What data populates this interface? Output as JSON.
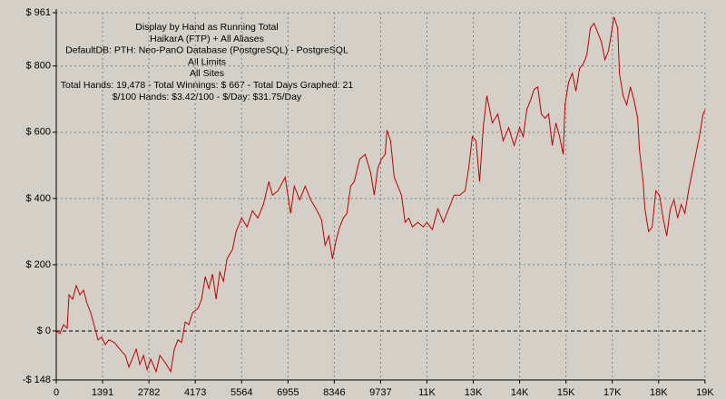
{
  "chart_data": {
    "type": "line",
    "title": "Display by Hand as Running Total",
    "annotations": [
      "HaikarA (FTP) + All Aliases",
      "DefaultDB: PTH: Neo-PanO Database (PostgreSQL) - PostgreSQL",
      "All Limits",
      "All Sites",
      "Total Hands: 19,478 - Total Winnings: $ 667 - Total Days Graphed: 21",
      "$/100 Hands: $3.42/100 - $/Day: $31.75/Day"
    ],
    "x": [
      0,
      109,
      218,
      327,
      382,
      491,
      600,
      709,
      818,
      927,
      1036,
      1145,
      1254,
      1363,
      1472,
      1581,
      1745,
      1909,
      2072,
      2181,
      2290,
      2400,
      2509,
      2618,
      2727,
      2836,
      3000,
      3109,
      3272,
      3436,
      3545,
      3654,
      3763,
      3872,
      3981,
      4090,
      4254,
      4363,
      4472,
      4581,
      4690,
      4799,
      4909,
      5018,
      5127,
      5290,
      5399,
      5563,
      5727,
      5890,
      6054,
      6218,
      6381,
      6490,
      6654,
      6872,
      7036,
      7145,
      7308,
      7472,
      7636,
      7799,
      7963,
      8072,
      8181,
      8290,
      8399,
      8508,
      8617,
      8726,
      8836,
      8945,
      9108,
      9272,
      9436,
      9545,
      9654,
      9763,
      9872,
      9927,
      10036,
      10145,
      10254,
      10363,
      10472,
      10581,
      10690,
      10854,
      11017,
      11126,
      11290,
      11454,
      11617,
      11781,
      11944,
      12108,
      12272,
      12381,
      12490,
      12599,
      12708,
      12817,
      12926,
      13090,
      13253,
      13417,
      13580,
      13744,
      13908,
      14017,
      14126,
      14235,
      14344,
      14453,
      14562,
      14671,
      14780,
      14889,
      14999,
      15108,
      15217,
      15271,
      15380,
      15490,
      15599,
      15708,
      15817,
      15926,
      16035,
      16144,
      16253,
      16362,
      16471,
      16580,
      16689,
      16744,
      16853,
      16907,
      17016,
      17125,
      17234,
      17344,
      17453,
      17507,
      17616,
      17671,
      17780,
      17889,
      17998,
      18107,
      18216,
      18325,
      18434,
      18543,
      18652,
      18761,
      18870,
      18979,
      19088,
      19197,
      19306,
      19415,
      19478
    ],
    "series": [
      {
        "color": "#c00000",
        "values": [
          0,
          -8,
          19,
          8,
          109,
          96,
          137,
          109,
          123,
          82,
          55,
          14,
          -27,
          -19,
          -41,
          -27,
          -35,
          -55,
          -74,
          -109,
          -82,
          -55,
          -101,
          -74,
          -117,
          -85,
          -123,
          -74,
          -96,
          -123,
          -55,
          -27,
          -35,
          27,
          19,
          55,
          68,
          96,
          164,
          128,
          172,
          96,
          178,
          150,
          218,
          246,
          300,
          341,
          314,
          363,
          341,
          382,
          451,
          410,
          423,
          464,
          355,
          437,
          396,
          437,
          396,
          369,
          336,
          259,
          287,
          218,
          273,
          314,
          341,
          355,
          437,
          451,
          519,
          533,
          478,
          410,
          492,
          519,
          533,
          606,
          574,
          464,
          437,
          410,
          328,
          341,
          314,
          328,
          314,
          328,
          306,
          369,
          328,
          369,
          410,
          410,
          423,
          492,
          587,
          574,
          451,
          614,
          710,
          628,
          655,
          574,
          614,
          560,
          614,
          587,
          669,
          696,
          729,
          737,
          655,
          642,
          655,
          560,
          628,
          587,
          533,
          683,
          751,
          778,
          724,
          792,
          806,
          833,
          915,
          929,
          901,
          874,
          819,
          847,
          915,
          948,
          915,
          778,
          710,
          683,
          737,
          696,
          642,
          546,
          451,
          369,
          300,
          314,
          423,
          410,
          341,
          287,
          369,
          396,
          341,
          382,
          355,
          423,
          478,
          533,
          587,
          655,
          667
        ]
      }
    ],
    "xlim": [
      0,
      19478
    ],
    "xticks": [
      0,
      1391,
      2782,
      4173,
      5564,
      6955,
      8346,
      9737,
      {
        "value": 11128,
        "label": "11K"
      },
      {
        "value": 12519,
        "label": "13K"
      },
      {
        "value": 13910,
        "label": "14K"
      },
      {
        "value": 15301,
        "label": "15K"
      },
      {
        "value": 16692,
        "label": "17K"
      },
      {
        "value": 18083,
        "label": "18K"
      },
      {
        "value": 19474,
        "label": "19K"
      }
    ],
    "ylim": [
      -148,
      961
    ],
    "yticks": [
      {
        "value": -148,
        "label": "-$ 148"
      },
      {
        "value": 0,
        "label": "$ 0"
      },
      {
        "value": 200,
        "label": "$ 200"
      },
      {
        "value": 400,
        "label": "$ 400"
      },
      {
        "value": 600,
        "label": "$ 600"
      },
      {
        "value": 800,
        "label": "$ 800"
      },
      {
        "value": 961,
        "label": "$ 961"
      }
    ],
    "grid": true
  }
}
